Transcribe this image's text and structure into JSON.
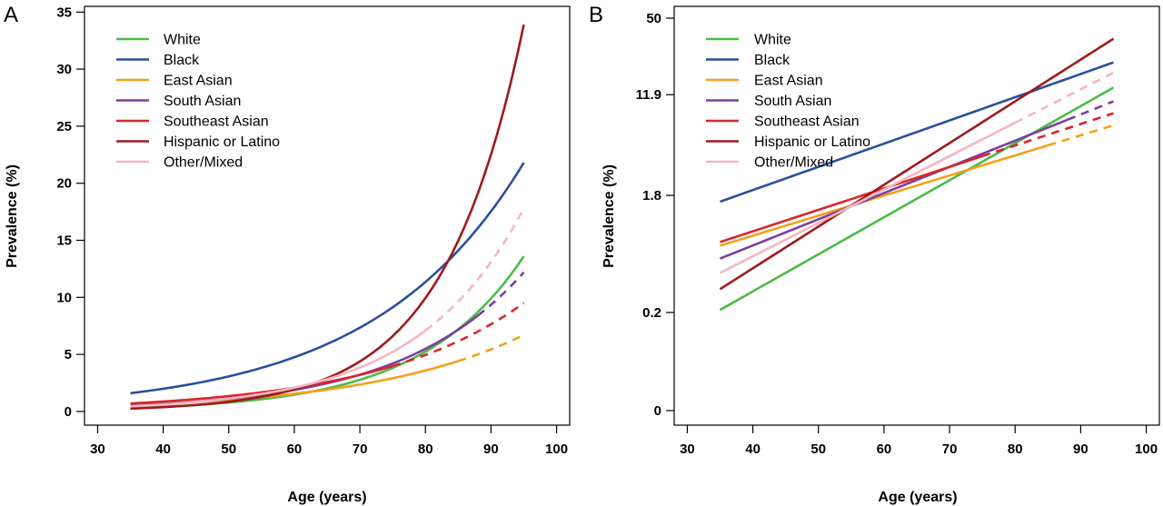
{
  "colors": {
    "White": "#4cbb47",
    "Black": "#2b4f9e",
    "East Asian": "#f5a01a",
    "South Asian": "#7b3f9e",
    "Southeast Asian": "#d9262c",
    "Hispanic or Latino": "#9e1b1b",
    "Other/Mixed": "#f4b6c2"
  },
  "chart_data": [
    {
      "type": "line",
      "panel_label": "A",
      "xlabel": "Age (years)",
      "ylabel": "Prevalence (%)",
      "xlim": [
        28,
        102
      ],
      "ylim": [
        -1.2,
        35.5
      ],
      "x_ticks": [
        30,
        40,
        50,
        60,
        70,
        80,
        90,
        100
      ],
      "y_ticks": [
        0,
        5,
        10,
        15,
        20,
        25,
        30,
        35
      ],
      "y_tick_labels": [
        "0",
        "5",
        "10",
        "15",
        "20",
        "25",
        "30",
        "35"
      ],
      "legend_position": "top-left",
      "series": [
        {
          "name": "White",
          "start": [
            35,
            0.3
          ],
          "end": [
            95,
            13.6
          ],
          "solid_to": 95
        },
        {
          "name": "Black",
          "start": [
            35,
            1.6
          ],
          "end": [
            95,
            21.8
          ],
          "solid_to": 95
        },
        {
          "name": "East Asian",
          "start": [
            35,
            0.55
          ],
          "end": [
            95,
            6.7
          ],
          "solid_to": 85
        },
        {
          "name": "South Asian",
          "start": [
            35,
            0.5
          ],
          "end": [
            95,
            12.2
          ],
          "solid_to": 88
        },
        {
          "name": "Southeast Asian",
          "start": [
            35,
            0.7
          ],
          "end": [
            95,
            9.5
          ],
          "solid_to": 75
        },
        {
          "name": "Hispanic or Latino",
          "start": [
            35,
            0.25
          ],
          "end": [
            95,
            33.9
          ],
          "solid_to": 95
        },
        {
          "name": "Other/Mixed",
          "start": [
            35,
            0.45
          ],
          "end": [
            95,
            17.8
          ],
          "solid_to": 80
        }
      ]
    },
    {
      "type": "line",
      "panel_label": "B",
      "xlabel": "Age (years)",
      "ylabel": "Prevalence (%)",
      "xlim": [
        28,
        102
      ],
      "scale": "log",
      "ylim_display": [
        0,
        50
      ],
      "x_ticks": [
        30,
        40,
        50,
        60,
        70,
        80,
        90,
        100
      ],
      "y_ticks": [
        0,
        0.2,
        1.8,
        11.9,
        50
      ],
      "y_tick_labels": [
        "0",
        "0.2",
        "1.8",
        "11.9",
        "50"
      ],
      "legend_position": "top-left",
      "series": [
        {
          "name": "White",
          "start": [
            35,
            0.21
          ],
          "end": [
            95,
            13.6
          ],
          "solid_to": 95
        },
        {
          "name": "Black",
          "start": [
            35,
            1.6
          ],
          "end": [
            95,
            21.8
          ],
          "solid_to": 95
        },
        {
          "name": "East Asian",
          "start": [
            35,
            0.7
          ],
          "end": [
            95,
            6.7
          ],
          "solid_to": 85
        },
        {
          "name": "South Asian",
          "start": [
            35,
            0.55
          ],
          "end": [
            95,
            10.5
          ],
          "solid_to": 88
        },
        {
          "name": "Southeast Asian",
          "start": [
            35,
            0.75
          ],
          "end": [
            95,
            8.4
          ],
          "solid_to": 75
        },
        {
          "name": "Hispanic or Latino",
          "start": [
            35,
            0.31
          ],
          "end": [
            95,
            34.0
          ],
          "solid_to": 95
        },
        {
          "name": "Other/Mixed",
          "start": [
            35,
            0.42
          ],
          "end": [
            95,
            18.0
          ],
          "solid_to": 80
        }
      ]
    }
  ]
}
